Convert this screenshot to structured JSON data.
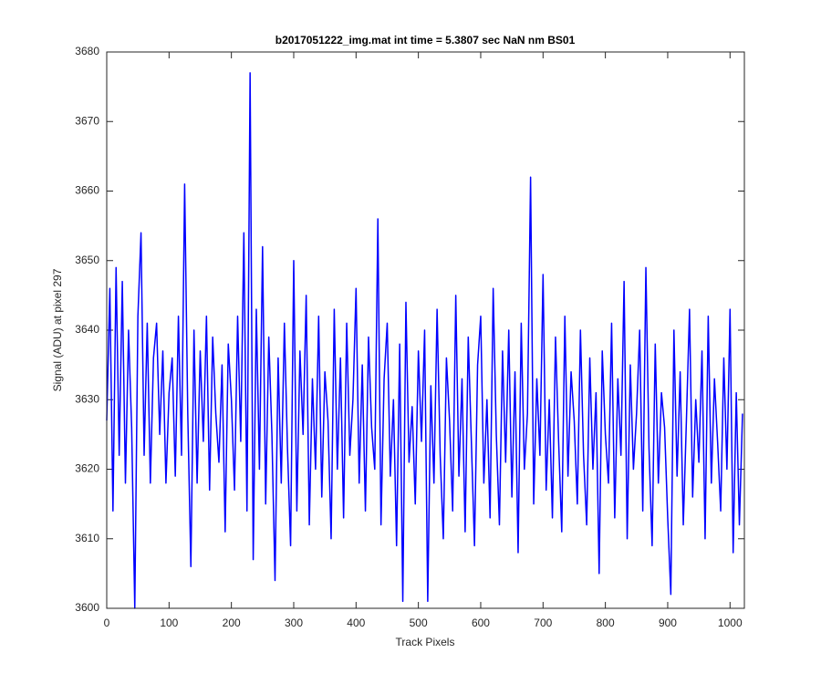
{
  "chart_data": {
    "type": "line",
    "title": "b2017051222_img.mat int time = 5.3807 sec  NaN nm BS01",
    "xlabel": "Track Pixels",
    "ylabel": "Signal (ADU) at pixel 297",
    "color": "#0000ff",
    "xlim": [
      0,
      1023
    ],
    "ylim": [
      3600,
      3680
    ],
    "xticks": [
      0,
      100,
      200,
      300,
      400,
      500,
      600,
      700,
      800,
      900,
      1000
    ],
    "yticks": [
      3600,
      3610,
      3620,
      3630,
      3640,
      3650,
      3660,
      3670,
      3680
    ],
    "grid": false,
    "x": [
      0,
      5,
      10,
      15,
      20,
      25,
      30,
      35,
      40,
      45,
      50,
      55,
      60,
      65,
      70,
      75,
      80,
      85,
      90,
      95,
      100,
      105,
      110,
      115,
      120,
      125,
      130,
      135,
      140,
      145,
      150,
      155,
      160,
      165,
      170,
      175,
      180,
      185,
      190,
      195,
      200,
      205,
      210,
      215,
      220,
      225,
      230,
      235,
      240,
      245,
      250,
      255,
      260,
      265,
      270,
      275,
      280,
      285,
      290,
      295,
      300,
      305,
      310,
      315,
      320,
      325,
      330,
      335,
      340,
      345,
      350,
      355,
      360,
      365,
      370,
      375,
      380,
      385,
      390,
      395,
      400,
      405,
      410,
      415,
      420,
      425,
      430,
      435,
      440,
      445,
      450,
      455,
      460,
      465,
      470,
      475,
      480,
      485,
      490,
      495,
      500,
      505,
      510,
      515,
      520,
      525,
      530,
      535,
      540,
      545,
      550,
      555,
      560,
      565,
      570,
      575,
      580,
      585,
      590,
      595,
      600,
      605,
      610,
      615,
      620,
      625,
      630,
      635,
      640,
      645,
      650,
      655,
      660,
      665,
      670,
      675,
      680,
      685,
      690,
      695,
      700,
      705,
      710,
      715,
      720,
      725,
      730,
      735,
      740,
      745,
      750,
      755,
      760,
      765,
      770,
      775,
      780,
      785,
      790,
      795,
      800,
      805,
      810,
      815,
      820,
      825,
      830,
      835,
      840,
      845,
      850,
      855,
      860,
      865,
      870,
      875,
      880,
      885,
      890,
      895,
      900,
      905,
      910,
      915,
      920,
      925,
      930,
      935,
      940,
      945,
      950,
      955,
      960,
      965,
      970,
      975,
      980,
      985,
      990,
      995,
      1000,
      1005,
      1010,
      1015,
      1020
    ],
    "values": [
      3627,
      3646,
      3614,
      3649,
      3622,
      3647,
      3618,
      3640,
      3626,
      3600,
      3642,
      3654,
      3622,
      3641,
      3618,
      3636,
      3641,
      3625,
      3637,
      3618,
      3631,
      3636,
      3619,
      3642,
      3622,
      3661,
      3628,
      3606,
      3640,
      3618,
      3637,
      3624,
      3642,
      3617,
      3639,
      3628,
      3621,
      3635,
      3611,
      3638,
      3630,
      3617,
      3642,
      3624,
      3654,
      3614,
      3677,
      3607,
      3643,
      3620,
      3652,
      3615,
      3639,
      3625,
      3604,
      3636,
      3618,
      3641,
      3623,
      3609,
      3650,
      3614,
      3637,
      3625,
      3645,
      3612,
      3633,
      3620,
      3642,
      3616,
      3634,
      3627,
      3610,
      3643,
      3620,
      3636,
      3613,
      3641,
      3622,
      3630,
      3646,
      3618,
      3635,
      3614,
      3639,
      3626,
      3620,
      3656,
      3612,
      3633,
      3641,
      3619,
      3630,
      3609,
      3638,
      3601,
      3644,
      3621,
      3629,
      3615,
      3637,
      3624,
      3640,
      3601,
      3632,
      3618,
      3643,
      3622,
      3610,
      3636,
      3627,
      3614,
      3645,
      3619,
      3633,
      3611,
      3639,
      3624,
      3609,
      3635,
      3642,
      3618,
      3630,
      3613,
      3646,
      3625,
      3612,
      3637,
      3621,
      3640,
      3616,
      3634,
      3608,
      3641,
      3620,
      3628,
      3662,
      3615,
      3633,
      3622,
      3648,
      3617,
      3630,
      3613,
      3639,
      3624,
      3611,
      3642,
      3619,
      3634,
      3627,
      3615,
      3640,
      3622,
      3612,
      3636,
      3620,
      3631,
      3605,
      3637,
      3625,
      3618,
      3641,
      3613,
      3633,
      3622,
      3647,
      3610,
      3635,
      3620,
      3628,
      3640,
      3614,
      3649,
      3623,
      3609,
      3638,
      3618,
      3631,
      3626,
      3613,
      3602,
      3640,
      3619,
      3634,
      3612,
      3627,
      3643,
      3616,
      3630,
      3621,
      3637,
      3610,
      3642,
      3618,
      3633,
      3624,
      3614,
      3636,
      3620,
      3643,
      3608,
      3631,
      3612,
      3628
    ]
  }
}
